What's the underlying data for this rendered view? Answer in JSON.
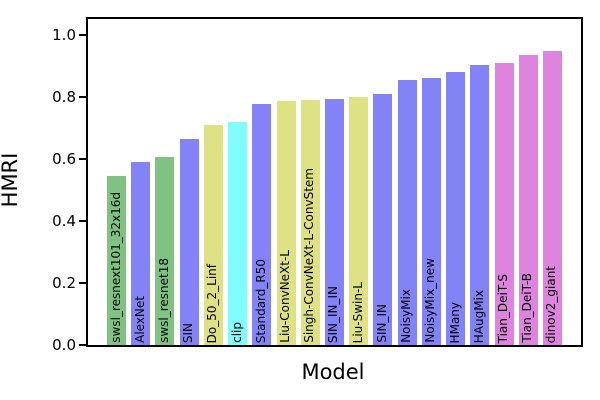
{
  "chart_data": {
    "type": "bar",
    "title": "",
    "xlabel": "Model",
    "ylabel": "HMRI",
    "ylim": [
      0,
      1.05
    ],
    "yticks": [
      0.0,
      0.2,
      0.4,
      0.6,
      0.8,
      1.0
    ],
    "grid": false,
    "legend": "none",
    "bar_label_position": "inside-vertical",
    "palette": {
      "green": "#7fc282",
      "blue": "#8383f7",
      "khaki": "#dee284",
      "cyan": "#80fcfc",
      "pink": "#de83de"
    },
    "bars": [
      {
        "label": "swsl_resnext101_32x16d",
        "value": 0.545,
        "color": "#7fc282"
      },
      {
        "label": "AlexNet",
        "value": 0.59,
        "color": "#8383f7"
      },
      {
        "label": "swsl_resnet18",
        "value": 0.605,
        "color": "#7fc282"
      },
      {
        "label": "SIN",
        "value": 0.665,
        "color": "#8383f7"
      },
      {
        "label": "Do_50_2_Linf",
        "value": 0.71,
        "color": "#dee284"
      },
      {
        "label": "clip",
        "value": 0.72,
        "color": "#80fcfc"
      },
      {
        "label": "Standard_R50",
        "value": 0.775,
        "color": "#8383f7"
      },
      {
        "label": "Liu-ConvNeXt-L",
        "value": 0.785,
        "color": "#dee284"
      },
      {
        "label": "Singh-ConvNeXt-L-ConvStem",
        "value": 0.79,
        "color": "#dee284"
      },
      {
        "label": "SIN_IN_IN",
        "value": 0.792,
        "color": "#8383f7"
      },
      {
        "label": "Liu-Swin-L",
        "value": 0.798,
        "color": "#dee284"
      },
      {
        "label": "SIN_IN",
        "value": 0.807,
        "color": "#8383f7"
      },
      {
        "label": "NoisyMix",
        "value": 0.853,
        "color": "#8383f7"
      },
      {
        "label": "NoisyMix_new",
        "value": 0.86,
        "color": "#8383f7"
      },
      {
        "label": "HMany",
        "value": 0.878,
        "color": "#8383f7"
      },
      {
        "label": "HAugMix",
        "value": 0.902,
        "color": "#8383f7"
      },
      {
        "label": "Tian_DeiT-S",
        "value": 0.908,
        "color": "#de83de"
      },
      {
        "label": "Tian_DeiT-B",
        "value": 0.935,
        "color": "#de83de"
      },
      {
        "label": "dinov2_giant",
        "value": 0.948,
        "color": "#de83de"
      }
    ]
  }
}
